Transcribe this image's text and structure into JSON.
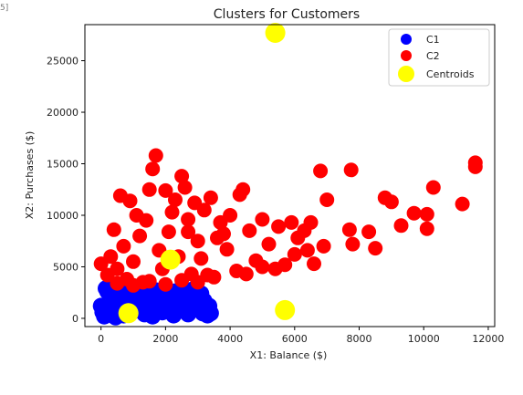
{
  "cell_tag": "5]",
  "chart_data": {
    "type": "scatter",
    "title": "Clusters for Customers",
    "xlabel": "X1: Balance ($)",
    "ylabel": "X2: Purchases ($)",
    "xlim": [
      -500,
      12200
    ],
    "ylim": [
      -800,
      28500
    ],
    "x_ticks": [
      0,
      2000,
      4000,
      6000,
      8000,
      10000,
      12000
    ],
    "y_ticks": [
      0,
      5000,
      10000,
      15000,
      20000,
      25000
    ],
    "x_tick_labels": [
      "0",
      "2000",
      "4000",
      "6000",
      "8000",
      "10000",
      "12000"
    ],
    "y_tick_labels": [
      "0",
      "5000",
      "10000",
      "15000",
      "20000",
      "25000"
    ],
    "legend_position": "top-right",
    "grid": false,
    "series": [
      {
        "name": "C1",
        "color": "#0000ff",
        "points": [
          [
            100,
            200
          ],
          [
            300,
            600
          ],
          [
            600,
            1000
          ],
          [
            900,
            1500
          ],
          [
            1200,
            2000
          ],
          [
            1500,
            2400
          ],
          [
            1800,
            1800
          ],
          [
            2100,
            1200
          ],
          [
            2400,
            800
          ],
          [
            2700,
            400
          ],
          [
            3000,
            900
          ],
          [
            3300,
            300
          ],
          [
            200,
            2600
          ],
          [
            500,
            2200
          ],
          [
            800,
            2800
          ],
          [
            1100,
            2500
          ],
          [
            1400,
            2900
          ],
          [
            1700,
            2700
          ],
          [
            2000,
            2500
          ],
          [
            2300,
            2600
          ],
          [
            2600,
            2300
          ],
          [
            2900,
            2100
          ],
          [
            3200,
            1700
          ],
          [
            3400,
            500
          ],
          [
            0,
            1200
          ],
          [
            400,
            1800
          ],
          [
            700,
            300
          ],
          [
            1000,
            700
          ],
          [
            1300,
            1100
          ],
          [
            1600,
            200
          ],
          [
            1900,
            600
          ],
          [
            2200,
            2000
          ],
          [
            2500,
            1600
          ],
          [
            2800,
            1400
          ],
          [
            3100,
            2400
          ],
          [
            3350,
            1200
          ],
          [
            150,
            2900
          ],
          [
            450,
            100
          ],
          [
            750,
            1600
          ],
          [
            1050,
            2100
          ],
          [
            1350,
            400
          ],
          [
            1650,
            1300
          ],
          [
            1950,
            2800
          ],
          [
            2250,
            300
          ],
          [
            2550,
            2700
          ],
          [
            2850,
            2800
          ],
          [
            3150,
            500
          ],
          [
            50,
            600
          ]
        ]
      },
      {
        "name": "C2",
        "color": "#ff0000",
        "points": [
          [
            0,
            5300
          ],
          [
            200,
            4200
          ],
          [
            300,
            6000
          ],
          [
            400,
            8600
          ],
          [
            500,
            4800
          ],
          [
            600,
            11900
          ],
          [
            700,
            7000
          ],
          [
            800,
            3800
          ],
          [
            900,
            11400
          ],
          [
            1000,
            5500
          ],
          [
            1100,
            10000
          ],
          [
            1200,
            8000
          ],
          [
            1300,
            3500
          ],
          [
            1400,
            9500
          ],
          [
            1500,
            12500
          ],
          [
            1600,
            14500
          ],
          [
            1700,
            15800
          ],
          [
            1800,
            6600
          ],
          [
            1900,
            4800
          ],
          [
            2000,
            12400
          ],
          [
            2100,
            8400
          ],
          [
            2200,
            10300
          ],
          [
            2300,
            11500
          ],
          [
            2400,
            6000
          ],
          [
            2500,
            13800
          ],
          [
            2600,
            12700
          ],
          [
            2700,
            9600
          ],
          [
            2800,
            4300
          ],
          [
            2900,
            11200
          ],
          [
            3000,
            7500
          ],
          [
            3100,
            5800
          ],
          [
            3200,
            10500
          ],
          [
            3300,
            4200
          ],
          [
            3400,
            11700
          ],
          [
            3600,
            7800
          ],
          [
            3700,
            9300
          ],
          [
            3900,
            6700
          ],
          [
            4000,
            10000
          ],
          [
            4200,
            4600
          ],
          [
            4300,
            12000
          ],
          [
            4400,
            12500
          ],
          [
            4600,
            8500
          ],
          [
            4800,
            5600
          ],
          [
            5000,
            9600
          ],
          [
            5200,
            7200
          ],
          [
            5400,
            4800
          ],
          [
            5500,
            8900
          ],
          [
            5700,
            5200
          ],
          [
            5900,
            9300
          ],
          [
            6100,
            7800
          ],
          [
            6300,
            8500
          ],
          [
            6500,
            9300
          ],
          [
            6600,
            5300
          ],
          [
            6800,
            14300
          ],
          [
            6900,
            7000
          ],
          [
            7000,
            11500
          ],
          [
            7700,
            8600
          ],
          [
            7750,
            14400
          ],
          [
            7800,
            7200
          ],
          [
            8300,
            8400
          ],
          [
            8500,
            6800
          ],
          [
            8800,
            11700
          ],
          [
            9000,
            11300
          ],
          [
            9300,
            9000
          ],
          [
            9700,
            10200
          ],
          [
            10100,
            10100
          ],
          [
            10100,
            8700
          ],
          [
            10300,
            12700
          ],
          [
            11200,
            11100
          ],
          [
            11600,
            14700
          ],
          [
            11600,
            15100
          ],
          [
            500,
            3400
          ],
          [
            1000,
            3200
          ],
          [
            1500,
            3600
          ],
          [
            2000,
            3300
          ],
          [
            2500,
            3700
          ],
          [
            3000,
            3500
          ],
          [
            3500,
            4000
          ],
          [
            4500,
            4300
          ],
          [
            5000,
            5000
          ],
          [
            6000,
            6200
          ],
          [
            6400,
            6600
          ],
          [
            3800,
            8200
          ],
          [
            2700,
            8400
          ]
        ]
      },
      {
        "name": "Centroids",
        "color": "#ffff00",
        "points": [
          [
            850,
            500
          ],
          [
            2150,
            5700
          ],
          [
            5700,
            800
          ],
          [
            5400,
            27700
          ]
        ]
      }
    ]
  }
}
